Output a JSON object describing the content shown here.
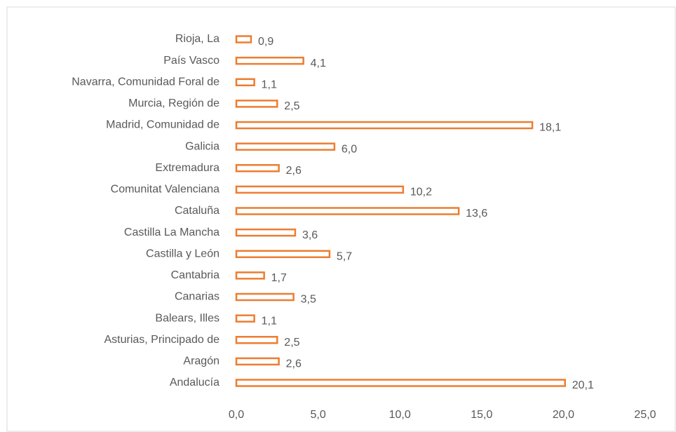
{
  "chart_data": {
    "type": "bar",
    "orientation": "horizontal",
    "color": "#ed7d31",
    "categories": [
      "Rioja, La",
      "País Vasco",
      "Navarra, Comunidad Foral de",
      "Murcia, Región de",
      "Madrid, Comunidad de",
      "Galicia",
      "Extremadura",
      "Comunitat Valenciana",
      "Cataluña",
      "Castilla La Mancha",
      "Castilla y León",
      "Cantabria",
      "Canarias",
      "Balears, Illes",
      "Asturias, Principado de",
      "Aragón",
      "Andalucía"
    ],
    "values": [
      0.9,
      4.1,
      1.1,
      2.5,
      18.1,
      6.0,
      2.6,
      10.2,
      13.6,
      3.6,
      5.7,
      1.7,
      3.5,
      1.1,
      2.5,
      2.6,
      20.1
    ],
    "value_labels": [
      "0,9",
      "4,1",
      "1,1",
      "2,5",
      "18,1",
      "6,0",
      "2,6",
      "10,2",
      "13,6",
      "3,6",
      "5,7",
      "1,7",
      "3,5",
      "1,1",
      "2,5",
      "2,6",
      "20,1"
    ],
    "xlim": [
      0,
      25
    ],
    "xticks": [
      {
        "value": 0,
        "label": "0,0"
      },
      {
        "value": 5,
        "label": "5,0"
      },
      {
        "value": 10,
        "label": "10,0"
      },
      {
        "value": 15,
        "label": "15,0"
      },
      {
        "value": 20,
        "label": "20,0"
      },
      {
        "value": 25,
        "label": "25,0"
      }
    ],
    "grid": false
  }
}
